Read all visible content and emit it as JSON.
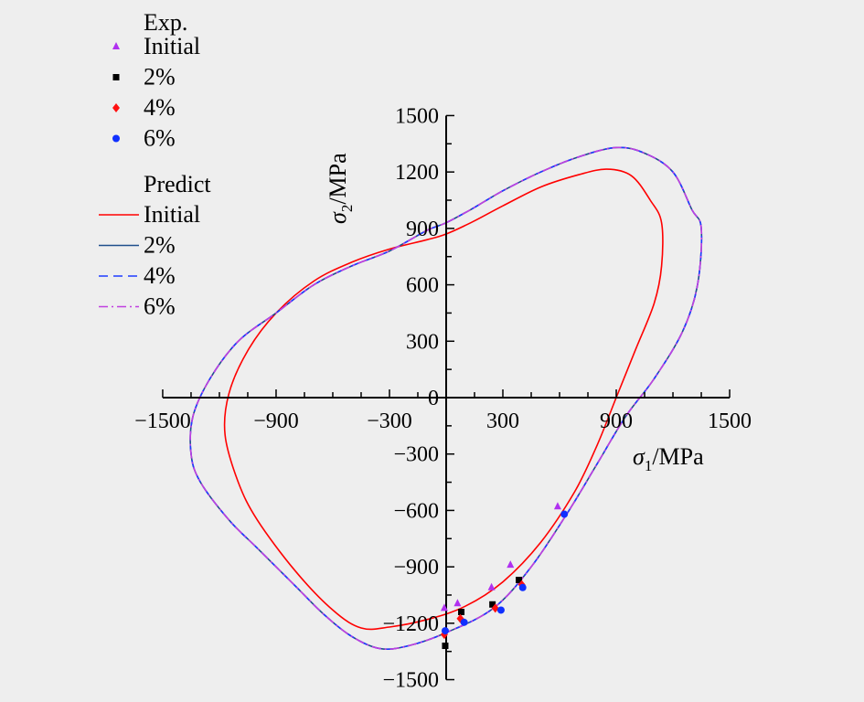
{
  "chart_data": {
    "type": "line",
    "xlabel": {
      "symbol": "σ",
      "sub": "1",
      "unit": "/MPa"
    },
    "ylabel": {
      "symbol": "σ",
      "sub": "2",
      "unit": "/MPa"
    },
    "xlim": [
      -1500,
      1500
    ],
    "ylim": [
      -1500,
      1500
    ],
    "x_ticks": [
      -1500,
      -900,
      -300,
      300,
      900,
      1500
    ],
    "x_tick_labels": [
      "−1500",
      "−900",
      "−300",
      "300",
      "900",
      "1500"
    ],
    "y_ticks": [
      -1500,
      -1200,
      -900,
      -600,
      -300,
      0,
      300,
      600,
      900,
      1200,
      1500
    ],
    "y_tick_labels": [
      "−1500",
      "−1200",
      "−900",
      "−600",
      "−300",
      "0",
      "300",
      "600",
      "900",
      "1200",
      "1500"
    ],
    "grid": false,
    "legend": {
      "placement": "top-left",
      "exp_header": "Exp.",
      "predict_header": "Predict"
    },
    "exp_series": [
      {
        "name": "Initial",
        "marker": "triangle",
        "color": "#b030f0",
        "points": [
          [
            -10,
            -1120
          ],
          [
            60,
            -1095
          ],
          [
            240,
            -1010
          ],
          [
            340,
            -890
          ],
          [
            590,
            -580
          ]
        ]
      },
      {
        "name": "2%",
        "marker": "square",
        "color": "#000000",
        "points": [
          [
            -5,
            -1320
          ],
          [
            80,
            -1140
          ],
          [
            245,
            -1100
          ],
          [
            385,
            -970
          ]
        ]
      },
      {
        "name": "4%",
        "marker": "diamond",
        "color": "#ff1010",
        "points": [
          [
            -10,
            -1260
          ],
          [
            75,
            -1175
          ],
          [
            260,
            -1120
          ],
          [
            400,
            -995
          ]
        ]
      },
      {
        "name": "6%",
        "marker": "circle",
        "color": "#1030ff",
        "points": [
          [
            -5,
            -1240
          ],
          [
            95,
            -1195
          ],
          [
            290,
            -1130
          ],
          [
            405,
            -1010
          ],
          [
            625,
            -620
          ]
        ]
      }
    ],
    "predict_series": [
      {
        "name": "Initial",
        "color": "#ff0000",
        "dash": "solid",
        "points": [
          [
            0,
            870
          ],
          [
            130,
            930
          ],
          [
            300,
            1020
          ],
          [
            500,
            1120
          ],
          [
            700,
            1185
          ],
          [
            850,
            1215
          ],
          [
            980,
            1180
          ],
          [
            1080,
            1050
          ],
          [
            1140,
            930
          ],
          [
            1140,
            700
          ],
          [
            1100,
            500
          ],
          [
            1000,
            250
          ],
          [
            900,
            0
          ],
          [
            800,
            -250
          ],
          [
            680,
            -500
          ],
          [
            500,
            -770
          ],
          [
            300,
            -980
          ],
          [
            100,
            -1110
          ],
          [
            -100,
            -1180
          ],
          [
            -300,
            -1220
          ],
          [
            -450,
            -1225
          ],
          [
            -600,
            -1130
          ],
          [
            -800,
            -920
          ],
          [
            -1000,
            -650
          ],
          [
            -1100,
            -450
          ],
          [
            -1170,
            -200
          ],
          [
            -1150,
            20
          ],
          [
            -1050,
            250
          ],
          [
            -900,
            450
          ],
          [
            -700,
            620
          ],
          [
            -500,
            720
          ],
          [
            -300,
            790
          ],
          [
            -100,
            840
          ],
          [
            0,
            870
          ]
        ]
      },
      {
        "name": "2%",
        "color": "#1e4f8c",
        "dash": "solid",
        "points": [
          [
            0,
            930
          ],
          [
            130,
            1000
          ],
          [
            300,
            1100
          ],
          [
            500,
            1200
          ],
          [
            700,
            1280
          ],
          [
            900,
            1330
          ],
          [
            1050,
            1300
          ],
          [
            1200,
            1200
          ],
          [
            1300,
            1000
          ],
          [
            1350,
            900
          ],
          [
            1330,
            600
          ],
          [
            1250,
            350
          ],
          [
            1100,
            100
          ],
          [
            950,
            -100
          ],
          [
            800,
            -350
          ],
          [
            650,
            -600
          ],
          [
            450,
            -900
          ],
          [
            250,
            -1120
          ],
          [
            0,
            -1250
          ],
          [
            -200,
            -1320
          ],
          [
            -350,
            -1335
          ],
          [
            -500,
            -1270
          ],
          [
            -650,
            -1150
          ],
          [
            -800,
            -1000
          ],
          [
            -1000,
            -800
          ],
          [
            -1150,
            -650
          ],
          [
            -1300,
            -450
          ],
          [
            -1350,
            -300
          ],
          [
            -1340,
            -100
          ],
          [
            -1250,
            100
          ],
          [
            -1100,
            300
          ],
          [
            -900,
            450
          ],
          [
            -700,
            600
          ],
          [
            -500,
            700
          ],
          [
            -300,
            780
          ],
          [
            -100,
            890
          ],
          [
            0,
            930
          ]
        ]
      },
      {
        "name": "4%",
        "color": "#1e3cff",
        "dash": "dashed",
        "points": [
          [
            0,
            930
          ],
          [
            130,
            1000
          ],
          [
            300,
            1100
          ],
          [
            500,
            1200
          ],
          [
            700,
            1280
          ],
          [
            900,
            1330
          ],
          [
            1050,
            1300
          ],
          [
            1200,
            1200
          ],
          [
            1300,
            1000
          ],
          [
            1350,
            900
          ],
          [
            1330,
            600
          ],
          [
            1250,
            350
          ],
          [
            1100,
            100
          ],
          [
            950,
            -100
          ],
          [
            800,
            -350
          ],
          [
            650,
            -600
          ],
          [
            450,
            -900
          ],
          [
            250,
            -1120
          ],
          [
            0,
            -1250
          ],
          [
            -200,
            -1320
          ],
          [
            -350,
            -1335
          ],
          [
            -500,
            -1270
          ],
          [
            -650,
            -1150
          ],
          [
            -800,
            -1000
          ],
          [
            -1000,
            -800
          ],
          [
            -1150,
            -650
          ],
          [
            -1300,
            -450
          ],
          [
            -1350,
            -300
          ],
          [
            -1340,
            -100
          ],
          [
            -1250,
            100
          ],
          [
            -1100,
            300
          ],
          [
            -900,
            450
          ],
          [
            -700,
            600
          ],
          [
            -500,
            700
          ],
          [
            -300,
            780
          ],
          [
            -100,
            890
          ],
          [
            0,
            930
          ]
        ]
      },
      {
        "name": "6%",
        "color": "#c040e0",
        "dash": "dashdot",
        "points": [
          [
            0,
            930
          ],
          [
            130,
            1000
          ],
          [
            300,
            1100
          ],
          [
            500,
            1200
          ],
          [
            700,
            1280
          ],
          [
            900,
            1330
          ],
          [
            1050,
            1300
          ],
          [
            1200,
            1200
          ],
          [
            1300,
            1000
          ],
          [
            1350,
            900
          ],
          [
            1330,
            600
          ],
          [
            1250,
            350
          ],
          [
            1100,
            100
          ],
          [
            950,
            -100
          ],
          [
            800,
            -350
          ],
          [
            650,
            -600
          ],
          [
            450,
            -900
          ],
          [
            250,
            -1120
          ],
          [
            0,
            -1250
          ],
          [
            -200,
            -1320
          ],
          [
            -350,
            -1335
          ],
          [
            -500,
            -1270
          ],
          [
            -650,
            -1150
          ],
          [
            -800,
            -1000
          ],
          [
            -1000,
            -800
          ],
          [
            -1150,
            -650
          ],
          [
            -1300,
            -450
          ],
          [
            -1350,
            -300
          ],
          [
            -1340,
            -100
          ],
          [
            -1250,
            100
          ],
          [
            -1100,
            300
          ],
          [
            -900,
            450
          ],
          [
            -700,
            600
          ],
          [
            -500,
            700
          ],
          [
            -300,
            780
          ],
          [
            -100,
            890
          ],
          [
            0,
            930
          ]
        ]
      }
    ]
  }
}
